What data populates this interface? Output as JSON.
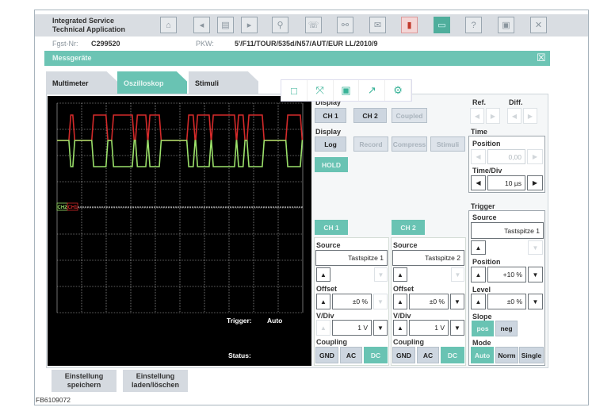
{
  "header": {
    "title_line1": "Integrated Service",
    "title_line2": "Technical Application",
    "icons": [
      "home-icon",
      "back-icon",
      "document-icon",
      "forward-icon",
      "wrench-icon",
      "diagnosis-icon",
      "connect-icon",
      "mail-icon",
      "battery-icon",
      "print-icon",
      "help-icon",
      "window-icon",
      "close-icon"
    ],
    "icon_glyphs": [
      "⌂",
      "◂",
      "▤",
      "▸",
      "⚲",
      "☏",
      "⚯",
      "✉",
      "▮",
      "▭",
      "?",
      "▣",
      "✕"
    ]
  },
  "vehicle": {
    "fgst_label": "Fgst-Nr:",
    "fgst_value": "C299520",
    "pkw_label": "PKW:",
    "pkw_value": "5'/F11/TOUR/535d/N57/AUT/EUR LL/2010/9"
  },
  "panel": {
    "title": "Messgeräte",
    "close": "☒"
  },
  "tabs": [
    {
      "label": "Multimeter"
    },
    {
      "label": "Oszilloskop",
      "active": true
    },
    {
      "label": "Stimuli"
    }
  ],
  "overlay_toolbar": [
    "□",
    "⤧",
    "▣",
    "↗",
    "⚙"
  ],
  "scope": {
    "trigger_label": "Trigger:",
    "trigger_value": "Auto",
    "status_label": "Status:",
    "ch1_marker": "CH1",
    "ch2_marker": "CH2",
    "colors": {
      "ch1": "#d42a2a",
      "ch2": "#9be06a",
      "grid": "#bbbbbb"
    },
    "time_per_div_us": 10,
    "dominant_intervals_us": [
      [
        5.2,
        6.8
      ],
      [
        14.5,
        20.3
      ],
      [
        22.6,
        31
      ],
      [
        32.3,
        36.5
      ],
      [
        37.4,
        42
      ],
      [
        53.2,
        55.8
      ],
      [
        56.8,
        62.3
      ],
      [
        63.2,
        72.6
      ],
      [
        73.5,
        76.1
      ],
      [
        77.7,
        83.9
      ],
      [
        93.5,
        99.4
      ]
    ]
  },
  "display1": {
    "label": "Display",
    "ch1": "CH 1",
    "ch2": "CH 2",
    "coupled": "Coupled"
  },
  "display2": {
    "label": "Display",
    "log": "Log",
    "record": "Record",
    "compress": "Compress",
    "stimuli": "Stimuli",
    "hold": "HOLD"
  },
  "ref": {
    "label": "Ref.",
    "diff": "Diff."
  },
  "time": {
    "label": "Time",
    "position_label": "Position",
    "position_value": "0,00",
    "timediv_label": "Time/Div",
    "timediv_value": "10 µs"
  },
  "channels": [
    {
      "button": "CH 1",
      "source_label": "Source",
      "source": "Tastspitze 1",
      "offset_label": "Offset",
      "offset": "±0 %",
      "vdiv_label": "V/Div",
      "vdiv": "1 V",
      "coupling_label": "Coupling",
      "gnd": "GND",
      "ac": "AC",
      "dc": "DC"
    },
    {
      "button": "CH 2",
      "source_label": "Source",
      "source": "Tastspitze 2",
      "offset_label": "Offset",
      "offset": "±0 %",
      "vdiv_label": "V/Div",
      "vdiv": "1 V",
      "coupling_label": "Coupling",
      "gnd": "GND",
      "ac": "AC",
      "dc": "DC"
    }
  ],
  "trigger": {
    "label": "Trigger",
    "source_label": "Source",
    "source": "Tastspitze 1",
    "position_label": "Position",
    "position": "+10 %",
    "level_label": "Level",
    "level": "±0 %",
    "slope_label": "Slope",
    "pos": "pos",
    "neg": "neg",
    "mode_label": "Mode",
    "auto": "Auto",
    "norm": "Norm",
    "single": "Single"
  },
  "arrows": {
    "up": "▲",
    "down": "▼",
    "left": "◀",
    "right": "▶"
  },
  "bottom": {
    "save_l1": "Einstellung",
    "save_l2": "speichern",
    "load_l1": "Einstellung",
    "load_l2": "laden/löschen",
    "code": "FB6109072"
  }
}
